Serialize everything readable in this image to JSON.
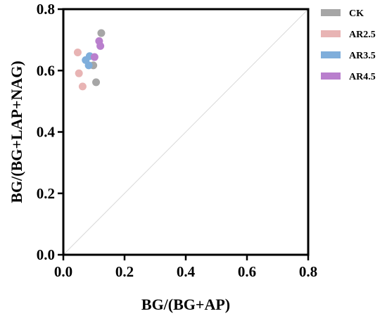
{
  "chart_data": {
    "type": "scatter",
    "title": "",
    "xlabel": "BG/(BG+AP)",
    "ylabel": "BG/(BG+LAP+NAG)",
    "xlim": [
      0,
      0.8
    ],
    "ylim": [
      0,
      0.8
    ],
    "x_ticks": [
      "0.0",
      "0.2",
      "0.4",
      "0.6",
      "0.8"
    ],
    "y_ticks": [
      "0.0",
      "0.2",
      "0.4",
      "0.6",
      "0.8"
    ],
    "grid": false,
    "legend_position": "top-right",
    "reference_line": {
      "from": [
        0,
        0
      ],
      "to": [
        0.8,
        0.8
      ],
      "color": "#d9d9d9"
    },
    "series": [
      {
        "name": "CK",
        "color": "#a6a6a6",
        "points": [
          [
            0.124,
            0.722
          ],
          [
            0.098,
            0.617
          ],
          [
            0.107,
            0.562
          ]
        ]
      },
      {
        "name": "AR2.5",
        "color": "#e8b4b4",
        "points": [
          [
            0.047,
            0.659
          ],
          [
            0.051,
            0.591
          ],
          [
            0.063,
            0.548
          ]
        ]
      },
      {
        "name": "AR3.5",
        "color": "#7faedb",
        "points": [
          [
            0.086,
            0.647
          ],
          [
            0.073,
            0.634
          ],
          [
            0.083,
            0.617
          ]
        ]
      },
      {
        "name": "AR4.5",
        "color": "#b97fcd",
        "points": [
          [
            0.117,
            0.696
          ],
          [
            0.121,
            0.68
          ],
          [
            0.102,
            0.644
          ]
        ]
      }
    ]
  }
}
